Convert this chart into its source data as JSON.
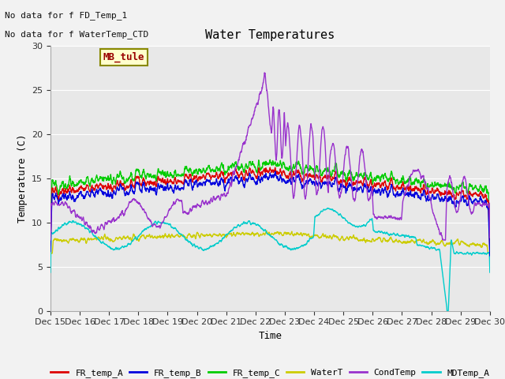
{
  "title": "Water Temperatures",
  "xlabel": "Time",
  "ylabel": "Temperature (C)",
  "ylim": [
    0,
    30
  ],
  "xlim": [
    0,
    15
  ],
  "fig_bg": "#f2f2f2",
  "plot_bg": "#e8e8e8",
  "grid_color": "#d0d0d0",
  "tick_labels": [
    "Dec 15",
    "Dec 16",
    "Dec 17",
    "Dec 18",
    "Dec 19",
    "Dec 20",
    "Dec 21",
    "Dec 22",
    "Dec 23",
    "Dec 24",
    "Dec 25",
    "Dec 26",
    "Dec 27",
    "Dec 28",
    "Dec 29",
    "Dec 30"
  ],
  "annotations": [
    "No data for f FD_Temp_1",
    "No data for f WaterTemp_CTD"
  ],
  "legend_box_label": "MB_tule",
  "legend_entries": [
    "FR_temp_A",
    "FR_temp_B",
    "FR_temp_C",
    "WaterT",
    "CondTemp",
    "MDTemp_A"
  ],
  "line_colors": [
    "#dd0000",
    "#0000dd",
    "#00cc00",
    "#cccc00",
    "#9933cc",
    "#00cccc"
  ],
  "lw": 1.0
}
